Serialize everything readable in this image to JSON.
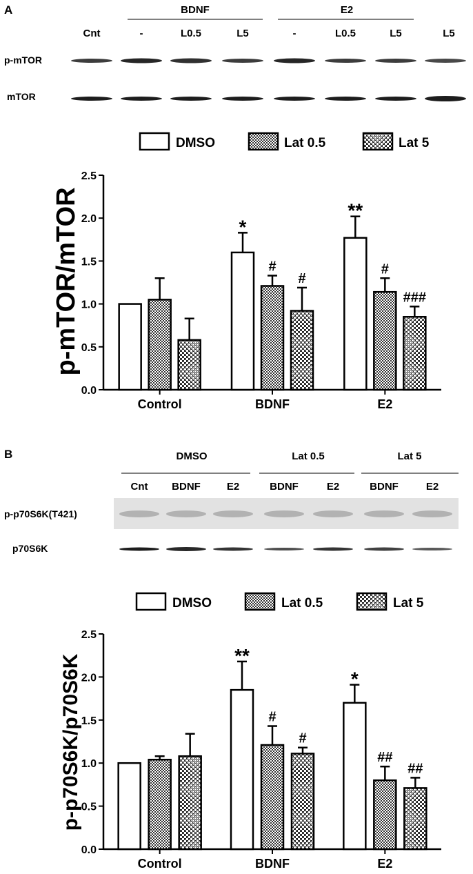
{
  "panel_a": {
    "letter": "A",
    "group_headers": [
      "BDNF",
      "E2"
    ],
    "lane_labels": [
      "Cnt",
      "-",
      "L0.5",
      "L5",
      "-",
      "L0.5",
      "L5",
      "L5"
    ],
    "row_labels": [
      "p-mTOR",
      "mTOR"
    ]
  },
  "panel_b": {
    "letter": "B",
    "group_headers": [
      "DMSO",
      "Lat 0.5",
      "Lat 5"
    ],
    "lane_labels": [
      "Cnt",
      "BDNF",
      "E2",
      "BDNF",
      "E2",
      "BDNF",
      "E2"
    ],
    "row_labels": [
      "p-p70S6K(T421)",
      "p70S6K"
    ]
  },
  "chart_data": [
    {
      "type": "bar",
      "ylabel": "p-mTOR/mTOR",
      "ylim": [
        0,
        2.5
      ],
      "yticks": [
        "0.0",
        "0.5",
        "1.0",
        "1.5",
        "2.0",
        "2.5"
      ],
      "categories": [
        "Control",
        "BDNF",
        "E2"
      ],
      "legend_position": "top",
      "series": [
        {
          "name": "DMSO",
          "pattern": "white",
          "values": [
            1.0,
            1.6,
            1.77
          ],
          "errors": [
            0,
            0.23,
            0.25
          ],
          "labels": [
            "",
            "*",
            "**"
          ]
        },
        {
          "name": "Lat 0.5",
          "pattern": "dense-check",
          "values": [
            1.05,
            1.21,
            1.14
          ],
          "errors": [
            0.25,
            0.12,
            0.16
          ],
          "labels": [
            "",
            "#",
            "#"
          ]
        },
        {
          "name": "Lat 5",
          "pattern": "open-check",
          "values": [
            0.58,
            0.92,
            0.85
          ],
          "errors": [
            0.25,
            0.27,
            0.12
          ],
          "labels": [
            "",
            "#",
            "###"
          ]
        }
      ]
    },
    {
      "type": "bar",
      "ylabel": "p-p70S6K/p70S6K",
      "ylim": [
        0,
        2.5
      ],
      "yticks": [
        "0.0",
        "0.5",
        "1.0",
        "1.5",
        "2.0",
        "2.5"
      ],
      "categories": [
        "Control",
        "BDNF",
        "E2"
      ],
      "legend_position": "top",
      "series": [
        {
          "name": "DMSO",
          "pattern": "white",
          "values": [
            1.0,
            1.85,
            1.7
          ],
          "errors": [
            0,
            0.33,
            0.21
          ],
          "labels": [
            "",
            "**",
            "*"
          ]
        },
        {
          "name": "Lat 0.5",
          "pattern": "dense-check",
          "values": [
            1.04,
            1.21,
            0.8
          ],
          "errors": [
            0.04,
            0.22,
            0.16
          ],
          "labels": [
            "",
            "#",
            "##"
          ]
        },
        {
          "name": "Lat 5",
          "pattern": "open-check",
          "values": [
            1.08,
            1.11,
            0.71
          ],
          "errors": [
            0.26,
            0.07,
            0.12
          ],
          "labels": [
            "",
            "#",
            "##"
          ]
        }
      ]
    }
  ]
}
